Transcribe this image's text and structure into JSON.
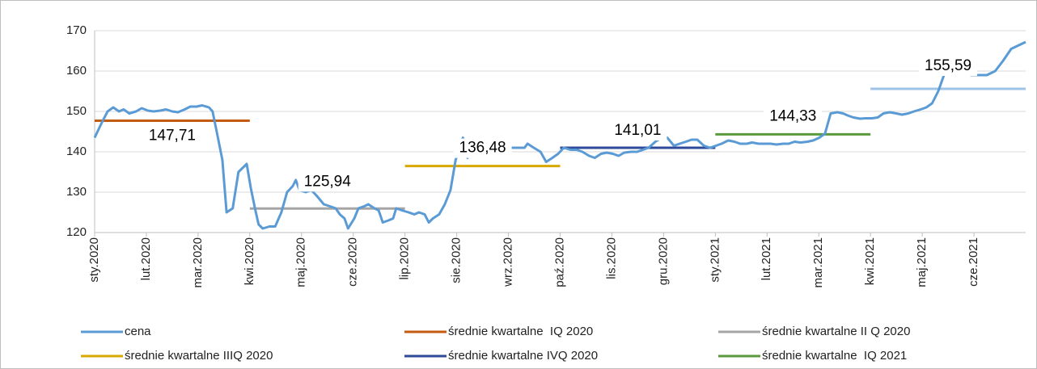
{
  "chart_data": {
    "type": "line",
    "xlim": [
      0,
      18
    ],
    "xticks": [
      {
        "value": 0,
        "label": "sty.2020"
      },
      {
        "value": 1,
        "label": "lut.2020"
      },
      {
        "value": 2,
        "label": "mar.2020"
      },
      {
        "value": 3,
        "label": "kwi.2020"
      },
      {
        "value": 4,
        "label": "maj.2020"
      },
      {
        "value": 5,
        "label": "cze.2020"
      },
      {
        "value": 6,
        "label": "lip.2020"
      },
      {
        "value": 7,
        "label": "sie.2020"
      },
      {
        "value": 8,
        "label": "wrz.2020"
      },
      {
        "value": 9,
        "label": "paź.2020"
      },
      {
        "value": 10,
        "label": "lis.2020"
      },
      {
        "value": 11,
        "label": "gru.2020"
      },
      {
        "value": 12,
        "label": "sty.2021"
      },
      {
        "value": 13,
        "label": "lut.2021"
      },
      {
        "value": 14,
        "label": "mar.2021"
      },
      {
        "value": 15,
        "label": "kwi.2021"
      },
      {
        "value": 16,
        "label": "maj.2021"
      },
      {
        "value": 17,
        "label": "cze.2021"
      }
    ],
    "ylim": [
      120,
      170
    ],
    "yticks": [
      120,
      130,
      140,
      150,
      160,
      170
    ],
    "grid": true,
    "legend": "bottom",
    "series": [
      {
        "name": "cena",
        "color": "#5b9bd5",
        "x": [
          0,
          0.13,
          0.25,
          0.36,
          0.47,
          0.56,
          0.67,
          0.8,
          0.91,
          1.03,
          1.14,
          1.27,
          1.38,
          1.5,
          1.61,
          1.74,
          1.85,
          1.97,
          2.08,
          2.21,
          2.28,
          2.36,
          2.47,
          2.55,
          2.67,
          2.78,
          2.94,
          3.02,
          3.1,
          3.17,
          3.25,
          3.38,
          3.49,
          3.61,
          3.72,
          3.83,
          3.89,
          3.96,
          4.08,
          4.19,
          4.3,
          4.43,
          4.55,
          4.66,
          4.74,
          4.83,
          4.9,
          5.02,
          5.1,
          5.21,
          5.29,
          5.41,
          5.49,
          5.57,
          5.68,
          5.77,
          5.83,
          5.94,
          6.07,
          6.18,
          6.27,
          6.38,
          6.46,
          6.54,
          6.66,
          6.77,
          6.88,
          6.98,
          7.12,
          7.21,
          7.32,
          7.43,
          7.52,
          7.63,
          7.74,
          7.84,
          7.95,
          8.07,
          8.18,
          8.31,
          8.37,
          8.49,
          8.62,
          8.73,
          8.85,
          8.96,
          9.07,
          9.2,
          9.32,
          9.43,
          9.56,
          9.67,
          9.79,
          9.9,
          10.02,
          10.13,
          10.24,
          10.37,
          10.49,
          10.6,
          10.71,
          10.84,
          10.96,
          11.07,
          11.2,
          11.31,
          11.43,
          11.54,
          11.65,
          11.78,
          11.9,
          12.01,
          12.12,
          12.25,
          12.37,
          12.48,
          12.61,
          12.71,
          12.84,
          12.95,
          13.07,
          13.18,
          13.31,
          13.42,
          13.53,
          13.65,
          13.78,
          13.89,
          14.01,
          14.12,
          14.23,
          14.36,
          14.47,
          14.56,
          14.67,
          14.8,
          14.9,
          15.03,
          15.14,
          15.25,
          15.37,
          15.5,
          15.61,
          15.73,
          15.84,
          15.97,
          16.08,
          16.19,
          16.31,
          16.42,
          16.5,
          16.62,
          16.75,
          16.86,
          16.94,
          17.14,
          17.25,
          17.41,
          17.56,
          17.72,
          18
        ],
        "values": [
          143.5,
          147,
          150,
          151,
          150,
          150.5,
          149.5,
          150,
          150.8,
          150.2,
          150,
          150.2,
          150.5,
          150,
          149.8,
          150.5,
          151.2,
          151.2,
          151.5,
          151,
          150,
          145,
          138,
          125,
          126,
          135,
          137,
          131,
          126,
          122,
          121,
          121.5,
          121.5,
          125,
          130,
          131.5,
          133,
          130.5,
          130,
          130.5,
          129,
          127,
          126.5,
          126,
          124.5,
          123.5,
          121,
          123.5,
          126,
          126.5,
          127,
          126,
          125.5,
          122.5,
          123,
          123.5,
          126,
          125.5,
          125,
          124.5,
          125,
          124.5,
          122.5,
          123.5,
          124.5,
          127,
          130.5,
          138,
          143.5,
          138.5,
          142,
          140,
          142,
          142.5,
          141,
          141.5,
          141,
          141,
          141,
          141,
          142,
          141,
          140,
          137.5,
          138.5,
          139.5,
          141,
          140.5,
          140.5,
          140,
          139,
          138.5,
          139.5,
          139.8,
          139.5,
          139,
          139.8,
          140,
          140,
          140.5,
          141,
          142.5,
          143.5,
          143.5,
          141.5,
          142,
          142.5,
          143,
          143,
          141.5,
          141,
          141.5,
          142,
          142.8,
          142.5,
          142,
          142,
          142.3,
          142,
          142,
          142,
          141.8,
          142,
          142,
          142.5,
          142.3,
          142.5,
          142.8,
          143.5,
          144.5,
          149.5,
          149.8,
          149.5,
          149,
          148.5,
          148.2,
          148.3,
          148.3,
          148.5,
          149.5,
          149.8,
          149.5,
          149.2,
          149.5,
          150,
          150.5,
          151,
          152,
          155,
          159,
          162,
          163,
          162,
          161,
          159,
          159,
          159,
          160,
          162.5,
          165.5,
          167.2
        ]
      }
    ],
    "averages": [
      {
        "name": "średnie kwartalne  IQ 2020",
        "color": "#c55a11",
        "x": [
          0,
          3
        ],
        "value": 147.71,
        "label": "147,71"
      },
      {
        "name": "średnie kwartalne II Q 2020",
        "color": "#a5a5a5",
        "x": [
          3,
          6
        ],
        "value": 125.94,
        "label": "125,94"
      },
      {
        "name": "średnie kwartalne IIIQ 2020",
        "color": "#d9a800",
        "x": [
          6,
          9
        ],
        "value": 136.48,
        "label": "136,48"
      },
      {
        "name": "średnie kwartalne IVQ 2020",
        "color": "#2e4a9a",
        "x": [
          9,
          12
        ],
        "value": 141.01,
        "label": "141,01"
      },
      {
        "name": "średnie kwartalne  IQ 2021",
        "color": "#5b9a3c",
        "x": [
          12,
          15
        ],
        "value": 144.33,
        "label": "144,33"
      },
      {
        "color": "#9dc3e6",
        "x": [
          15,
          18
        ],
        "value": 155.59,
        "label": "155,59"
      }
    ]
  }
}
